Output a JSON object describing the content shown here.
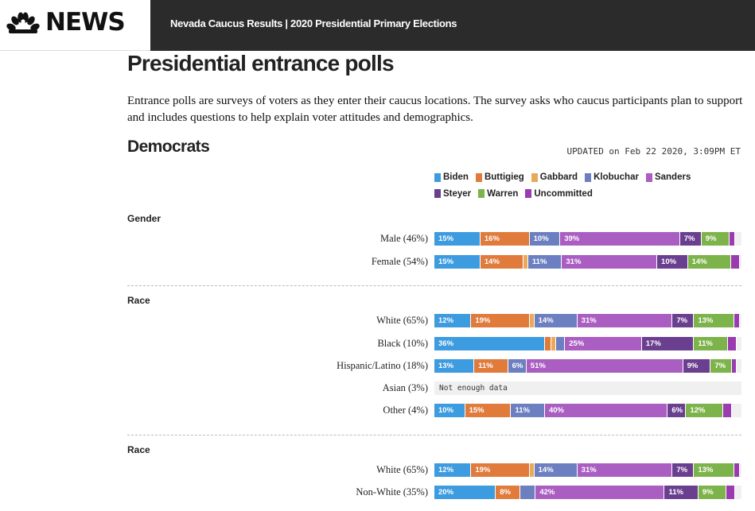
{
  "header": {
    "logo_text": "NEWS",
    "title": "Nevada Caucus Results | 2020 Presidential Primary Elections"
  },
  "page": {
    "title": "Presidential entrance polls",
    "intro": "Entrance polls are surveys of voters as they enter their caucus locations. The survey asks who caucus participants plan to support and includes questions to help explain voter attitudes and demographics.",
    "section_title": "Democrats",
    "updated": "UPDATED on Feb 22 2020, 3:09PM ET"
  },
  "candidates": [
    {
      "key": "biden",
      "name": "Biden",
      "color": "#3d9be0"
    },
    {
      "key": "buttigieg",
      "name": "Buttigieg",
      "color": "#e07b3c"
    },
    {
      "key": "gabbard",
      "name": "Gabbard",
      "color": "#e9a95a"
    },
    {
      "key": "klobuchar",
      "name": "Klobuchar",
      "color": "#6c7fc0"
    },
    {
      "key": "sanders",
      "name": "Sanders",
      "color": "#aa5ec2"
    },
    {
      "key": "steyer",
      "name": "Steyer",
      "color": "#6a3f8f"
    },
    {
      "key": "warren",
      "name": "Warren",
      "color": "#7db34b"
    },
    {
      "key": "uncommitted",
      "name": "Uncommitted",
      "color": "#9a3cb0"
    }
  ],
  "groups": [
    {
      "title": "Gender",
      "rows": [
        {
          "label": "Male (46%)",
          "values": {
            "biden": 15,
            "buttigieg": 16,
            "gabbard": 0,
            "klobuchar": 10,
            "sanders": 39,
            "steyer": 7,
            "warren": 9,
            "uncommitted": 2
          }
        },
        {
          "label": "Female (54%)",
          "values": {
            "biden": 15,
            "buttigieg": 14,
            "gabbard": 1,
            "klobuchar": 11,
            "sanders": 31,
            "steyer": 10,
            "warren": 14,
            "uncommitted": 3
          }
        }
      ]
    },
    {
      "title": "Race",
      "rows": [
        {
          "label": "White (65%)",
          "values": {
            "biden": 12,
            "buttigieg": 19,
            "gabbard": 1,
            "klobuchar": 14,
            "sanders": 31,
            "steyer": 7,
            "warren": 13,
            "uncommitted": 2
          }
        },
        {
          "label": "Black (10%)",
          "values": {
            "biden": 36,
            "buttigieg": 2,
            "gabbard": 1,
            "klobuchar": 3,
            "sanders": 25,
            "steyer": 17,
            "warren": 11,
            "uncommitted": 3
          }
        },
        {
          "label": "Hispanic/Latino (18%)",
          "values": {
            "biden": 13,
            "buttigieg": 11,
            "gabbard": 0,
            "klobuchar": 6,
            "sanders": 51,
            "steyer": 9,
            "warren": 7,
            "uncommitted": 1
          }
        },
        {
          "label": "Asian (3%)",
          "nodata": "Not enough data"
        },
        {
          "label": "Other (4%)",
          "values": {
            "biden": 10,
            "buttigieg": 15,
            "gabbard": 0,
            "klobuchar": 11,
            "sanders": 40,
            "steyer": 6,
            "warren": 12,
            "uncommitted": 3
          }
        }
      ]
    },
    {
      "title": "Race",
      "rows": [
        {
          "label": "White (65%)",
          "values": {
            "biden": 12,
            "buttigieg": 19,
            "gabbard": 1,
            "klobuchar": 14,
            "sanders": 31,
            "steyer": 7,
            "warren": 13,
            "uncommitted": 2
          }
        },
        {
          "label": "Non-White (35%)",
          "values": {
            "biden": 20,
            "buttigieg": 8,
            "gabbard": 0,
            "klobuchar": 5,
            "sanders": 42,
            "steyer": 11,
            "warren": 9,
            "uncommitted": 3
          }
        }
      ]
    }
  ]
}
